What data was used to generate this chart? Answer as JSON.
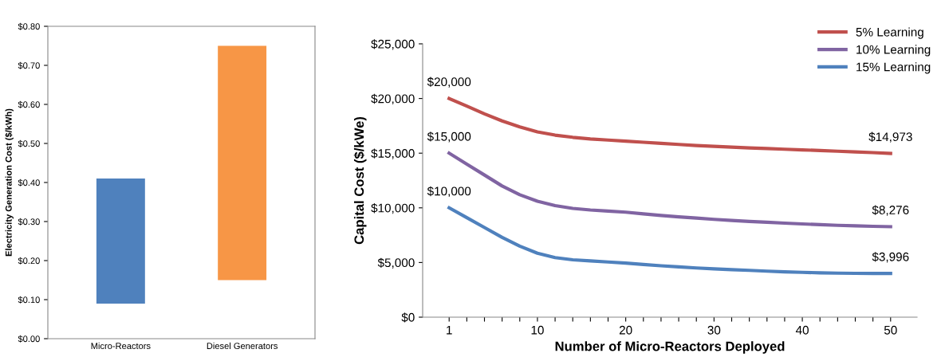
{
  "chart_data": [
    {
      "type": "bar",
      "ylabel": "Electricity Generation Cost ($/kWh)",
      "categories": [
        "Micro-Reactors",
        "Diesel Generators"
      ],
      "values": [
        0.32,
        0.6
      ],
      "base": [
        0.09,
        0.15
      ],
      "colors": [
        "#4f81bd",
        "#f79646"
      ],
      "ylim": [
        0,
        0.8
      ],
      "yticks": [
        {
          "value": 0,
          "label": "$0.00"
        },
        {
          "value": 0.1,
          "label": "$0.10"
        },
        {
          "value": 0.2,
          "label": "$0.20"
        },
        {
          "value": 0.3,
          "label": "$0.30"
        },
        {
          "value": 0.4,
          "label": "$0.40"
        },
        {
          "value": 0.5,
          "label": "$0.50"
        },
        {
          "value": 0.6,
          "label": "$0.60"
        },
        {
          "value": 0.7,
          "label": "$0.70"
        },
        {
          "value": 0.8,
          "label": "$0.80"
        }
      ],
      "grid": false
    },
    {
      "type": "line",
      "xlabel": "Number of Micro-Reactors Deployed",
      "ylabel": "Capital Cost ($/kWe)",
      "categories": [
        "1",
        null,
        null,
        null,
        null,
        "10",
        null,
        null,
        null,
        null,
        "20",
        null,
        null,
        null,
        null,
        "30",
        null,
        null,
        null,
        null,
        "40",
        null,
        null,
        null,
        null,
        "50"
      ],
      "ylim": [
        0,
        25000
      ],
      "yticks": [
        {
          "value": 0,
          "label": "$0"
        },
        {
          "value": 5000,
          "label": "$5,000"
        },
        {
          "value": 10000,
          "label": "$10,000"
        },
        {
          "value": 15000,
          "label": "$15,000"
        },
        {
          "value": 20000,
          "label": "$20,000"
        },
        {
          "value": 25000,
          "label": "$25,000"
        }
      ],
      "grid": false,
      "legend": "top right",
      "marker": "none",
      "line_style": "solid",
      "series": [
        {
          "name": "5% Learning",
          "color": "#c0504d",
          "values": [
            20000,
            19300,
            18600,
            17950,
            17400,
            16950,
            16650,
            16450,
            16300,
            16200,
            16100,
            16000,
            15900,
            15800,
            15700,
            15620,
            15550,
            15480,
            15420,
            15360,
            15300,
            15240,
            15180,
            15120,
            15050,
            14973
          ],
          "value_labels": [
            "$20,000",
            null,
            null,
            null,
            null,
            null,
            null,
            null,
            null,
            null,
            null,
            null,
            null,
            null,
            null,
            null,
            null,
            null,
            null,
            null,
            null,
            null,
            null,
            null,
            null,
            "$14,973"
          ]
        },
        {
          "name": "10% Learning",
          "color": "#8064a2",
          "values": [
            15000,
            14000,
            13000,
            12000,
            11200,
            10600,
            10200,
            9950,
            9800,
            9700,
            9600,
            9450,
            9300,
            9180,
            9060,
            8950,
            8850,
            8760,
            8680,
            8600,
            8530,
            8460,
            8400,
            8350,
            8310,
            8276
          ],
          "value_labels": [
            "$15,000",
            null,
            null,
            null,
            null,
            null,
            null,
            null,
            null,
            null,
            null,
            null,
            null,
            null,
            null,
            null,
            null,
            null,
            null,
            null,
            null,
            null,
            null,
            null,
            null,
            "$8,276"
          ]
        },
        {
          "name": "15% Learning",
          "color": "#4f81bd",
          "values": [
            10000,
            9100,
            8200,
            7300,
            6500,
            5850,
            5450,
            5250,
            5150,
            5050,
            4950,
            4820,
            4700,
            4600,
            4500,
            4420,
            4350,
            4280,
            4210,
            4150,
            4100,
            4060,
            4030,
            4010,
            4000,
            3996
          ],
          "value_labels": [
            "$10,000",
            null,
            null,
            null,
            null,
            null,
            null,
            null,
            null,
            null,
            null,
            null,
            null,
            null,
            null,
            null,
            null,
            null,
            null,
            null,
            null,
            null,
            null,
            null,
            null,
            "$3,996"
          ]
        }
      ]
    }
  ]
}
